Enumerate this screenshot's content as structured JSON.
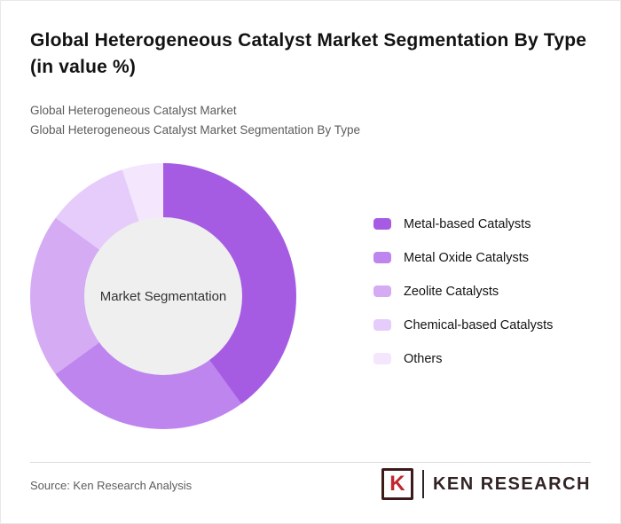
{
  "page": {
    "title": "Global Heterogeneous Catalyst Market Segmentation By Type (in value %)",
    "subtitle_line1": "Global Heterogeneous Catalyst Market",
    "subtitle_line2": "Global Heterogeneous Catalyst Market Segmentation By Type",
    "source": "Source: Ken Research Analysis"
  },
  "logo": {
    "monogram": "K",
    "brand": "KEN RESEARCH"
  },
  "chart_data": {
    "type": "pie",
    "donut": true,
    "title": "Global Heterogeneous Catalyst Market Segmentation By Type (in value %)",
    "center_label": "Market Segmentation",
    "categories": [
      "Metal-based Catalysts",
      "Metal Oxide Catalysts",
      "Zeolite Catalysts",
      "Chemical-based Catalysts",
      "Others"
    ],
    "values": [
      40,
      25,
      20,
      10,
      5
    ],
    "colors": [
      "#a55ce3",
      "#bf85ee",
      "#d5abf4",
      "#e6ccfa",
      "#f3e6fd"
    ],
    "center_circle_color": "#efefef",
    "legend_position": "right",
    "start_angle_deg": 0,
    "direction": "clockwise",
    "units": "percent"
  }
}
